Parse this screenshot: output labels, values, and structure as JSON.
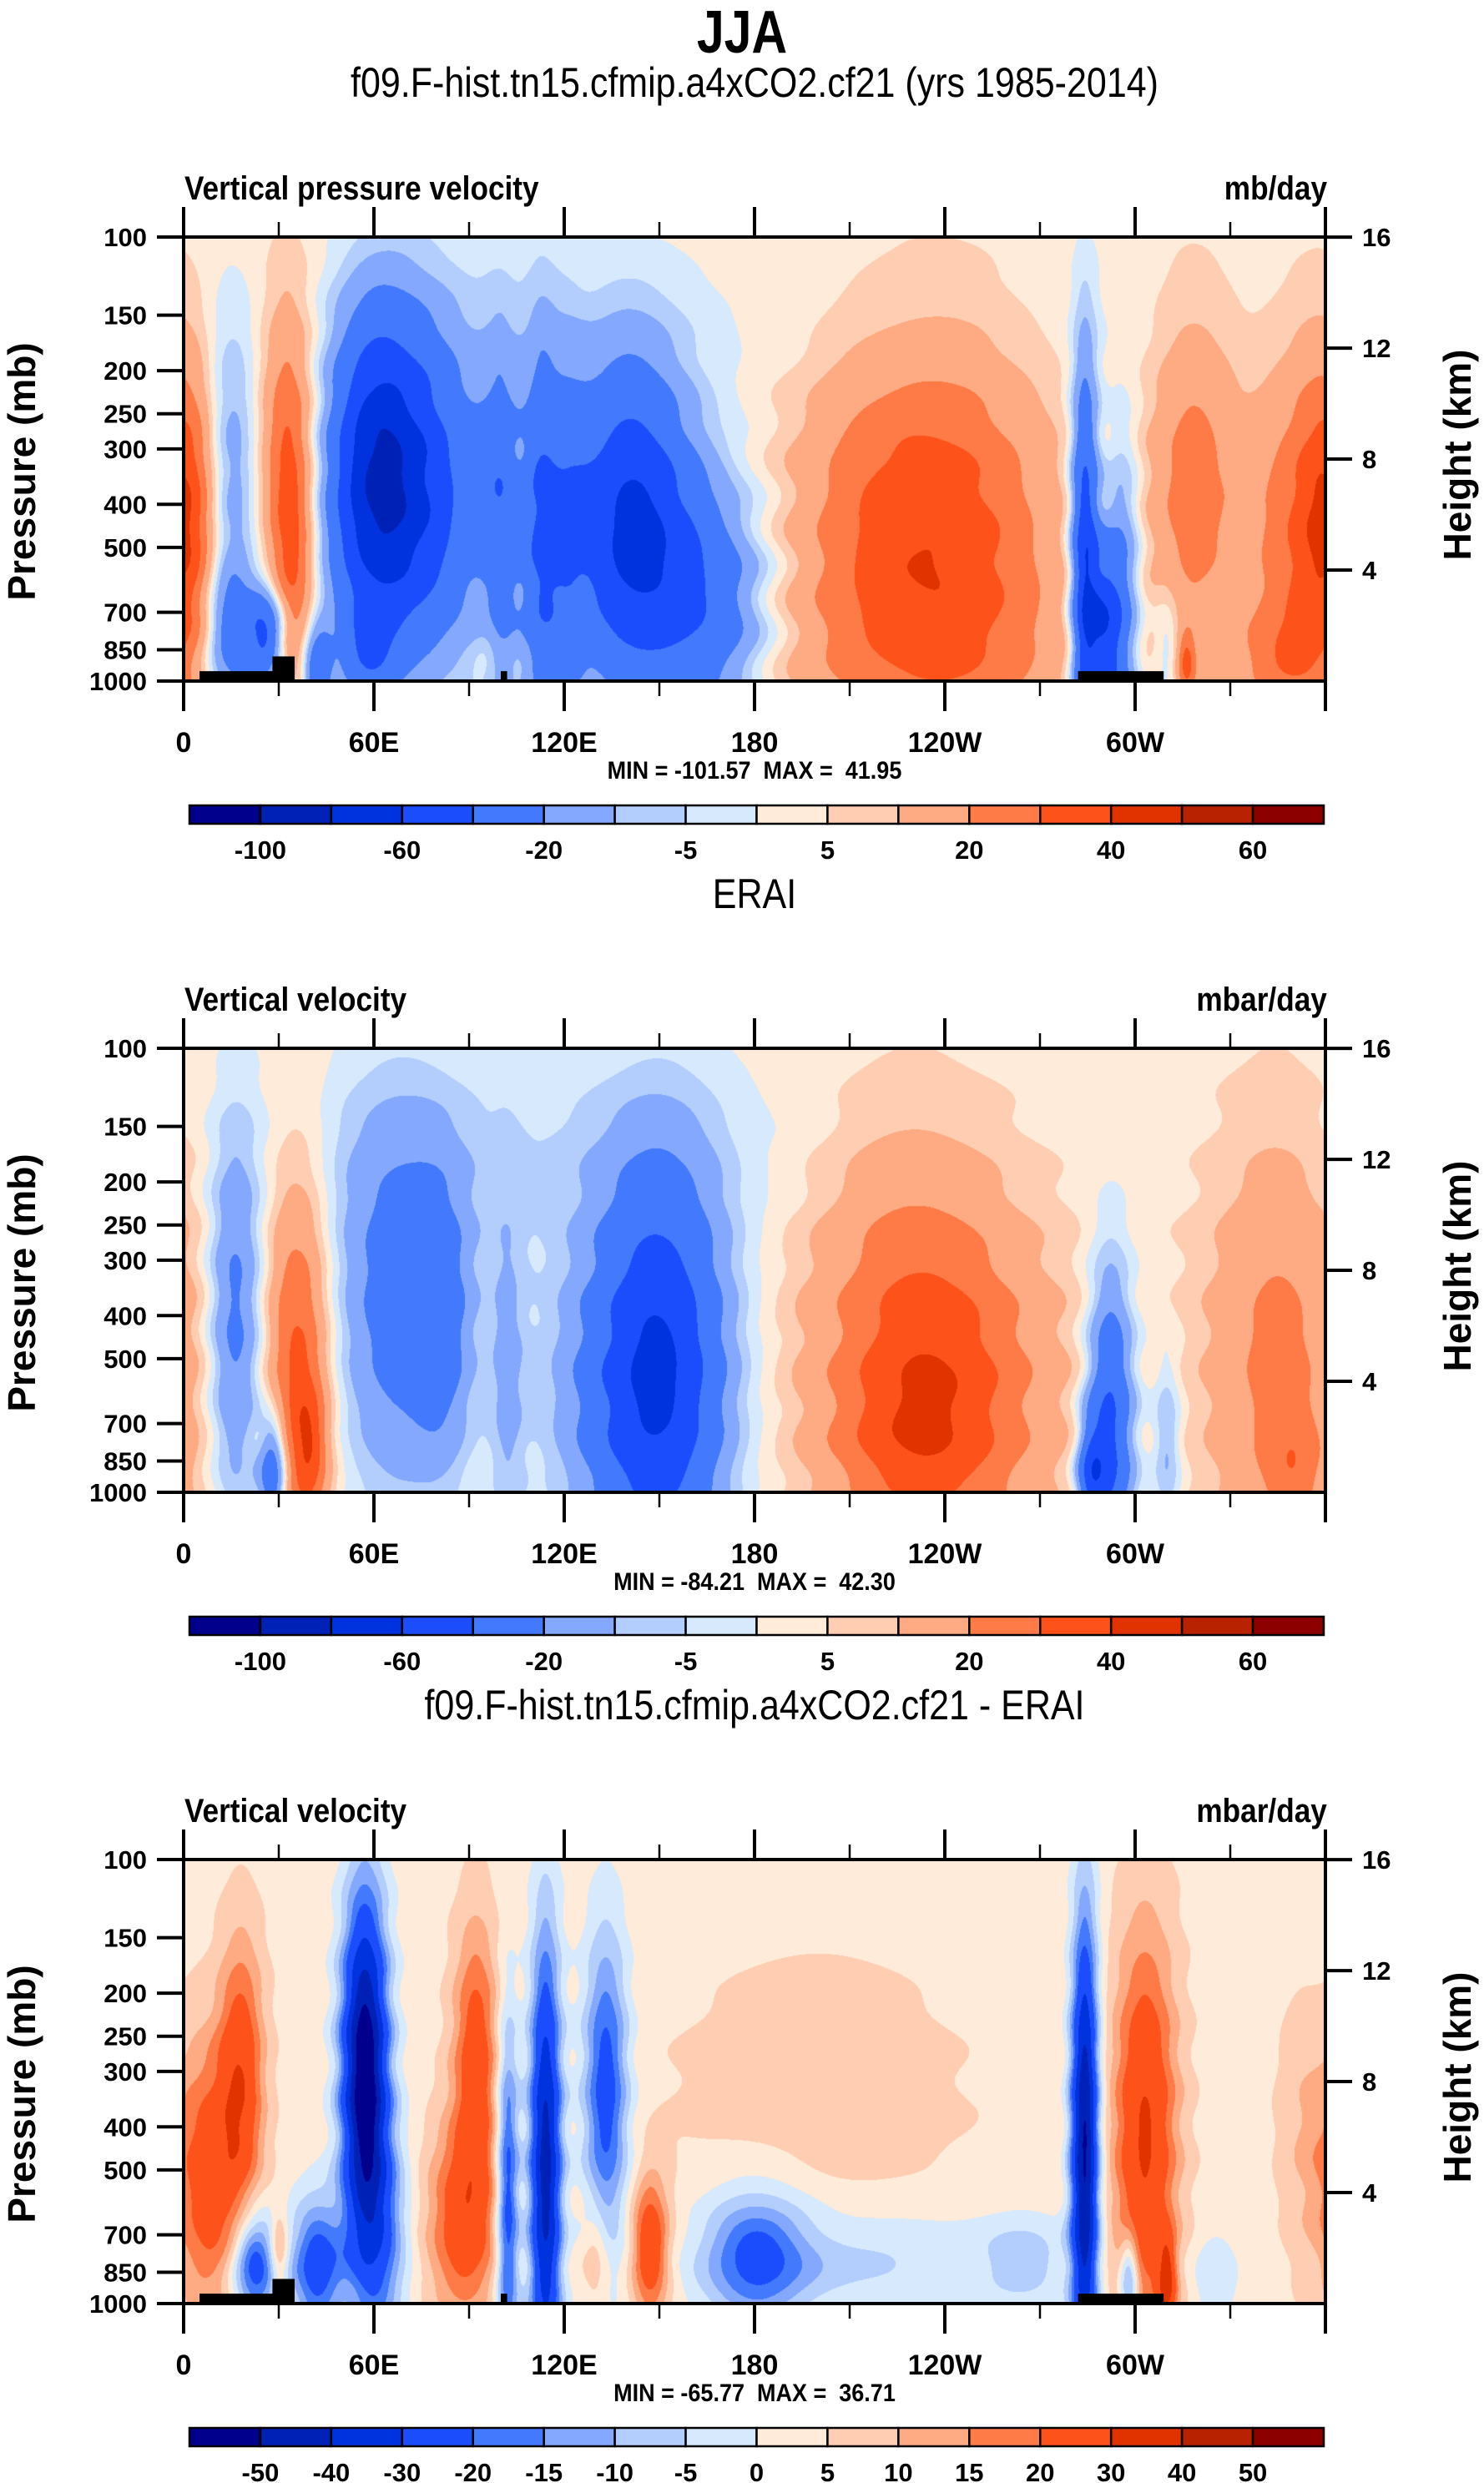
{
  "page": {
    "season_title": "JJA"
  },
  "chart_data": [
    {
      "type": "heatmap",
      "subtype": "filled-contour zonal-height cross section",
      "title": "f09.F-hist.tn15.cfmip.a4xCO2.cf21 (yrs 1985-2014)",
      "left_string": "Vertical pressure velocity",
      "right_string": "mb/day",
      "xlabel": "",
      "ylabel": "Pressure (mb)",
      "ylabel_right": "Height (km)",
      "x_ticks": [
        "0",
        "60E",
        "120E",
        "180",
        "120W",
        "60W"
      ],
      "x_tick_values": [
        0,
        60,
        120,
        180,
        240,
        300
      ],
      "xlim": [
        0,
        360
      ],
      "y_ticks": [
        "100",
        "150",
        "200",
        "250",
        "300",
        "400",
        "500",
        "700",
        "850",
        "1000"
      ],
      "y_tick_values": [
        100,
        150,
        200,
        250,
        300,
        400,
        500,
        700,
        850,
        1000
      ],
      "ylim": [
        1000,
        100
      ],
      "yscale": "log",
      "y_right_ticks": [
        "16",
        "12",
        "8",
        "4"
      ],
      "y_right_tick_values_km": [
        16,
        12,
        8,
        4
      ],
      "min_label": "MIN = -101.57",
      "max_label": "MAX =  41.95",
      "min": -101.57,
      "max": 41.95,
      "levels": [
        -100,
        -80,
        -60,
        -40,
        -20,
        -10,
        -5,
        0,
        5,
        10,
        20,
        30,
        40,
        50,
        60
      ],
      "colorbar_labels": [
        "-100",
        "-60",
        "-20",
        "-5",
        "5",
        "20",
        "40",
        "60"
      ],
      "colorbar_label_levels": [
        -100,
        -60,
        -20,
        -5,
        5,
        20,
        40,
        60
      ],
      "topography": [
        {
          "lon": [
            5,
            35
          ],
          "p_top": 950
        },
        {
          "lon": [
            28,
            35
          ],
          "p_top": 880
        },
        {
          "lon": [
            100,
            102
          ],
          "p_top": 950
        },
        {
          "lon": [
            282,
            309
          ],
          "p_top": 950
        }
      ],
      "features": [
        {
          "lon": 2,
          "p": 420,
          "dlon": 7,
          "dlogp": 0.35,
          "value": 24
        },
        {
          "lon": 14,
          "p": 350,
          "dlon": 6,
          "dlogp": 0.35,
          "value": -22
        },
        {
          "lon": 15,
          "p": 780,
          "dlon": 6,
          "dlogp": 0.15,
          "value": -30
        },
        {
          "lon": 26,
          "p": 780,
          "dlon": 4,
          "dlogp": 0.1,
          "value": -45
        },
        {
          "lon": 33,
          "p": 320,
          "dlon": 6,
          "dlogp": 0.35,
          "value": 30
        },
        {
          "lon": 35,
          "p": 600,
          "dlon": 5,
          "dlogp": 0.25,
          "value": 18
        },
        {
          "lon": 42,
          "p": 950,
          "dlon": 3,
          "dlogp": 0.1,
          "value": -40
        },
        {
          "lon": 60,
          "p": 330,
          "dlon": 10,
          "dlogp": 0.35,
          "value": -55
        },
        {
          "lon": 75,
          "p": 330,
          "dlon": 14,
          "dlogp": 0.38,
          "value": -35
        },
        {
          "lon": 70,
          "p": 480,
          "dlon": 20,
          "dlogp": 0.3,
          "value": -20
        },
        {
          "lon": 58,
          "p": 870,
          "dlon": 6,
          "dlogp": 0.1,
          "value": -25
        },
        {
          "lon": 96,
          "p": 820,
          "dlon": 3,
          "dlogp": 0.1,
          "value": 6
        },
        {
          "lon": 100,
          "p": 420,
          "dlon": 4,
          "dlogp": 0.4,
          "value": -28
        },
        {
          "lon": 112,
          "p": 450,
          "dlon": 4,
          "dlogp": 0.45,
          "value": -32
        },
        {
          "lon": 120,
          "p": 500,
          "dlon": 5,
          "dlogp": 0.45,
          "value": -22
        },
        {
          "lon": 140,
          "p": 400,
          "dlon": 13,
          "dlogp": 0.35,
          "value": -48
        },
        {
          "lon": 150,
          "p": 580,
          "dlon": 18,
          "dlogp": 0.3,
          "value": -30
        },
        {
          "lon": 168,
          "p": 720,
          "dlon": 12,
          "dlogp": 0.25,
          "value": -20
        },
        {
          "lon": 222,
          "p": 420,
          "dlon": 22,
          "dlogp": 0.4,
          "value": 24
        },
        {
          "lon": 250,
          "p": 450,
          "dlon": 20,
          "dlogp": 0.42,
          "value": 18
        },
        {
          "lon": 235,
          "p": 900,
          "dlon": 35,
          "dlogp": 0.25,
          "value": 12
        },
        {
          "lon": 284,
          "p": 560,
          "dlon": 3,
          "dlogp": 0.45,
          "value": -60
        },
        {
          "lon": 290,
          "p": 780,
          "dlon": 4,
          "dlogp": 0.2,
          "value": -55
        },
        {
          "lon": 296,
          "p": 650,
          "dlon": 4,
          "dlogp": 0.35,
          "value": -25
        },
        {
          "lon": 310,
          "p": 820,
          "dlon": 3,
          "dlogp": 0.15,
          "value": -12
        },
        {
          "lon": 316,
          "p": 920,
          "dlon": 2,
          "dlogp": 0.07,
          "value": 25
        },
        {
          "lon": 318,
          "p": 370,
          "dlon": 10,
          "dlogp": 0.38,
          "value": 22
        },
        {
          "lon": 352,
          "p": 480,
          "dlon": 12,
          "dlogp": 0.4,
          "value": 24
        },
        {
          "lon": 345,
          "p": 900,
          "dlon": 10,
          "dlogp": 0.12,
          "value": 14
        },
        {
          "lon": 180,
          "p": 160,
          "dlon": 120,
          "dlogp": 0.2,
          "value": -3
        }
      ],
      "background_value": 3
    },
    {
      "type": "heatmap",
      "subtype": "filled-contour zonal-height cross section",
      "title": "ERAI",
      "left_string": "Vertical velocity",
      "right_string": "mbar/day",
      "xlabel": "",
      "ylabel": "Pressure (mb)",
      "ylabel_right": "Height (km)",
      "x_ticks": [
        "0",
        "60E",
        "120E",
        "180",
        "120W",
        "60W"
      ],
      "x_tick_values": [
        0,
        60,
        120,
        180,
        240,
        300
      ],
      "xlim": [
        0,
        360
      ],
      "y_ticks": [
        "100",
        "150",
        "200",
        "250",
        "300",
        "400",
        "500",
        "700",
        "850",
        "1000"
      ],
      "y_tick_values": [
        100,
        150,
        200,
        250,
        300,
        400,
        500,
        700,
        850,
        1000
      ],
      "ylim": [
        1000,
        100
      ],
      "yscale": "log",
      "y_right_ticks": [
        "16",
        "12",
        "8",
        "4"
      ],
      "y_right_tick_values_km": [
        16,
        12,
        8,
        4
      ],
      "min_label": "MIN = -84.21",
      "max_label": "MAX =  42.30",
      "min": -84.21,
      "max": 42.3,
      "levels": [
        -100,
        -80,
        -60,
        -40,
        -20,
        -10,
        -5,
        0,
        5,
        10,
        20,
        30,
        40,
        50,
        60
      ],
      "colorbar_labels": [
        "-100",
        "-60",
        "-20",
        "-5",
        "5",
        "20",
        "40",
        "60"
      ],
      "colorbar_label_levels": [
        -100,
        -60,
        -20,
        -5,
        5,
        20,
        40,
        60
      ],
      "topography": [],
      "features": [
        {
          "lon": 16,
          "p": 420,
          "dlon": 6,
          "dlogp": 0.42,
          "value": -28
        },
        {
          "lon": 28,
          "p": 900,
          "dlon": 3,
          "dlogp": 0.12,
          "value": -40
        },
        {
          "lon": 36,
          "p": 500,
          "dlon": 7,
          "dlogp": 0.42,
          "value": 30
        },
        {
          "lon": 40,
          "p": 800,
          "dlon": 4,
          "dlogp": 0.15,
          "value": 20
        },
        {
          "lon": 68,
          "p": 380,
          "dlon": 14,
          "dlogp": 0.42,
          "value": -30
        },
        {
          "lon": 82,
          "p": 420,
          "dlon": 6,
          "dlogp": 0.3,
          "value": -18
        },
        {
          "lon": 150,
          "p": 520,
          "dlon": 14,
          "dlogp": 0.45,
          "value": -52
        },
        {
          "lon": 140,
          "p": 600,
          "dlon": 20,
          "dlogp": 0.35,
          "value": -20
        },
        {
          "lon": 102,
          "p": 550,
          "dlon": 4,
          "dlogp": 0.4,
          "value": -12
        },
        {
          "lon": 225,
          "p": 380,
          "dlon": 22,
          "dlogp": 0.42,
          "value": 18
        },
        {
          "lon": 245,
          "p": 620,
          "dlon": 22,
          "dlogp": 0.4,
          "value": 22
        },
        {
          "lon": 225,
          "p": 800,
          "dlon": 18,
          "dlogp": 0.2,
          "value": 12
        },
        {
          "lon": 292,
          "p": 750,
          "dlon": 5,
          "dlogp": 0.35,
          "value": -48
        },
        {
          "lon": 286,
          "p": 900,
          "dlon": 3,
          "dlogp": 0.12,
          "value": -40
        },
        {
          "lon": 310,
          "p": 780,
          "dlon": 3,
          "dlogp": 0.2,
          "value": -15
        },
        {
          "lon": 345,
          "p": 500,
          "dlon": 16,
          "dlogp": 0.5,
          "value": 20
        },
        {
          "lon": 350,
          "p": 880,
          "dlon": 6,
          "dlogp": 0.12,
          "value": 12
        },
        {
          "lon": 110,
          "p": 170,
          "dlon": 70,
          "dlogp": 0.25,
          "value": -7
        }
      ],
      "background_value": 3
    },
    {
      "type": "heatmap",
      "subtype": "filled-contour zonal-height cross section",
      "title": "f09.F-hist.tn15.cfmip.a4xCO2.cf21 - ERAI",
      "left_string": "Vertical velocity",
      "right_string": "mbar/day",
      "xlabel": "",
      "ylabel": "Pressure (mb)",
      "ylabel_right": "Height (km)",
      "x_ticks": [
        "0",
        "60E",
        "120E",
        "180",
        "120W",
        "60W"
      ],
      "x_tick_values": [
        0,
        60,
        120,
        180,
        240,
        300
      ],
      "xlim": [
        0,
        360
      ],
      "y_ticks": [
        "100",
        "150",
        "200",
        "250",
        "300",
        "400",
        "500",
        "700",
        "850",
        "1000"
      ],
      "y_tick_values": [
        100,
        150,
        200,
        250,
        300,
        400,
        500,
        700,
        850,
        1000
      ],
      "ylim": [
        1000,
        100
      ],
      "yscale": "log",
      "y_right_ticks": [
        "16",
        "12",
        "8",
        "4"
      ],
      "y_right_tick_values_km": [
        16,
        12,
        8,
        4
      ],
      "min_label": "MIN = -65.77",
      "max_label": "MAX =  36.71",
      "min": -65.77,
      "max": 36.71,
      "levels": [
        -50,
        -40,
        -30,
        -20,
        -15,
        -10,
        -5,
        0,
        5,
        10,
        15,
        20,
        30,
        40,
        50
      ],
      "colorbar_labels": [
        "-50",
        "-40",
        "-30",
        "-20",
        "-15",
        "-10",
        "-5",
        "0",
        "5",
        "10",
        "15",
        "20",
        "30",
        "40",
        "50"
      ],
      "colorbar_label_levels": [
        -50,
        -40,
        -30,
        -20,
        -15,
        -10,
        -5,
        0,
        5,
        10,
        15,
        20,
        30,
        40,
        50
      ],
      "topography": [
        {
          "lon": [
            5,
            35
          ],
          "p_top": 950
        },
        {
          "lon": [
            28,
            35
          ],
          "p_top": 880
        },
        {
          "lon": [
            100,
            102
          ],
          "p_top": 950
        },
        {
          "lon": [
            282,
            309
          ],
          "p_top": 950
        }
      ],
      "features": [
        {
          "lon": 8,
          "p": 520,
          "dlon": 8,
          "dlogp": 0.3,
          "value": 22
        },
        {
          "lon": 18,
          "p": 300,
          "dlon": 5,
          "dlogp": 0.3,
          "value": 22
        },
        {
          "lon": 22,
          "p": 820,
          "dlon": 5,
          "dlogp": 0.12,
          "value": -30
        },
        {
          "lon": 30,
          "p": 780,
          "dlon": 2,
          "dlogp": 0.1,
          "value": 15
        },
        {
          "lon": 42,
          "p": 820,
          "dlon": 6,
          "dlogp": 0.15,
          "value": -28
        },
        {
          "lon": 57,
          "p": 300,
          "dlon": 5,
          "dlogp": 0.38,
          "value": -62
        },
        {
          "lon": 62,
          "p": 700,
          "dlon": 6,
          "dlogp": 0.25,
          "value": -20
        },
        {
          "lon": 92,
          "p": 280,
          "dlon": 5,
          "dlogp": 0.3,
          "value": 22
        },
        {
          "lon": 88,
          "p": 650,
          "dlon": 8,
          "dlogp": 0.22,
          "value": 22
        },
        {
          "lon": 102,
          "p": 600,
          "dlon": 2.5,
          "dlogp": 0.4,
          "value": -30
        },
        {
          "lon": 114,
          "p": 500,
          "dlon": 3.5,
          "dlogp": 0.5,
          "value": -48
        },
        {
          "lon": 133,
          "p": 330,
          "dlon": 5,
          "dlogp": 0.35,
          "value": -28
        },
        {
          "lon": 147,
          "p": 750,
          "dlon": 4,
          "dlogp": 0.15,
          "value": 26
        },
        {
          "lon": 130,
          "p": 770,
          "dlon": 3,
          "dlogp": 0.12,
          "value": 10
        },
        {
          "lon": 180,
          "p": 780,
          "dlon": 12,
          "dlogp": 0.15,
          "value": -24
        },
        {
          "lon": 215,
          "p": 800,
          "dlon": 30,
          "dlogp": 0.12,
          "value": -10
        },
        {
          "lon": 265,
          "p": 800,
          "dlon": 10,
          "dlogp": 0.1,
          "value": -10
        },
        {
          "lon": 200,
          "p": 350,
          "dlon": 40,
          "dlogp": 0.4,
          "value": 4
        },
        {
          "lon": 284,
          "p": 450,
          "dlon": 3,
          "dlogp": 0.5,
          "value": -55
        },
        {
          "lon": 303,
          "p": 420,
          "dlon": 7,
          "dlogp": 0.45,
          "value": 28
        },
        {
          "lon": 310,
          "p": 880,
          "dlon": 2,
          "dlogp": 0.1,
          "value": 25
        },
        {
          "lon": 298,
          "p": 900,
          "dlon": 2,
          "dlogp": 0.1,
          "value": -25
        },
        {
          "lon": 352,
          "p": 400,
          "dlon": 6,
          "dlogp": 0.3,
          "value": 5
        },
        {
          "lon": 325,
          "p": 880,
          "dlon": 5,
          "dlogp": 0.1,
          "value": -8
        }
      ],
      "background_value": 3
    }
  ],
  "palette": [
    "#00008c",
    "#0021b5",
    "#0033dd",
    "#1c4dfd",
    "#4379fd",
    "#83a8fd",
    "#b3cdfd",
    "#d6e9fd",
    "#feebd9",
    "#fecdb2",
    "#feaa82",
    "#fe7a46",
    "#fe521b",
    "#e03300",
    "#b82200",
    "#8c0000"
  ]
}
